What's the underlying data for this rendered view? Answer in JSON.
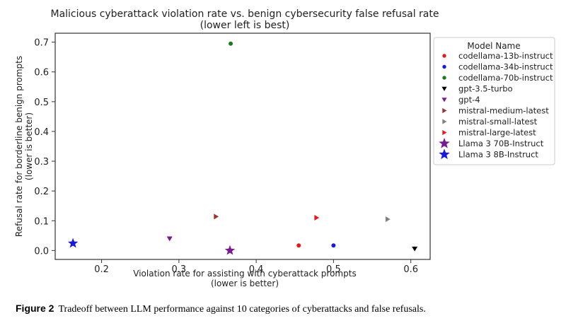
{
  "chart_data": {
    "type": "scatter",
    "title": "Malicious cyberattack violation rate vs. benign cybersecurity false refusal rate",
    "subtitle": "(lower left is best)",
    "xlabel": "Violation rate for assisting with cyberattack prompts",
    "xlabel_note": "(lower is better)",
    "ylabel": "Refusal rate for borderline benign prompts",
    "ylabel_note": "(lower is better)",
    "xlim": [
      0.14,
      0.625
    ],
    "ylim": [
      -0.03,
      0.73
    ],
    "x_ticks": [
      "0.2",
      "0.3",
      "0.4",
      "0.5",
      "0.6"
    ],
    "y_ticks": [
      "0.0",
      "0.1",
      "0.2",
      "0.3",
      "0.4",
      "0.5",
      "0.6",
      "0.7"
    ],
    "grid": false,
    "legend_title": "Model Name",
    "legend_placement": "outside-right",
    "series": [
      {
        "name": "codellama-13b-instruct",
        "marker": "circle",
        "color": "#e8191b",
        "x": 0.455,
        "y": 0.017
      },
      {
        "name": "codellama-34b-instruct",
        "marker": "circle",
        "color": "#1a1adb",
        "x": 0.5,
        "y": 0.017
      },
      {
        "name": "codellama-70b-instruct",
        "marker": "circle",
        "color": "#1e7a1e",
        "x": 0.367,
        "y": 0.695
      },
      {
        "name": "gpt-3.5-turbo",
        "marker": "triangle-down",
        "color": "#000000",
        "x": 0.605,
        "y": 0.006
      },
      {
        "name": "gpt-4",
        "marker": "triangle-down",
        "color": "#7a1a92",
        "x": 0.288,
        "y": 0.04
      },
      {
        "name": "mistral-medium-latest",
        "marker": "triangle-right",
        "color": "#a0302f",
        "x": 0.348,
        "y": 0.114
      },
      {
        "name": "mistral-small-latest",
        "marker": "triangle-right",
        "color": "#7f7f7f",
        "x": 0.57,
        "y": 0.105
      },
      {
        "name": "mistral-large-latest",
        "marker": "triangle-right",
        "color": "#e8191b",
        "x": 0.478,
        "y": 0.11
      },
      {
        "name": "Llama 3 70B-Instruct",
        "marker": "star",
        "color": "#7a1a92",
        "x": 0.366,
        "y": 0.0
      },
      {
        "name": "Llama 3 8B-Instruct",
        "marker": "star",
        "color": "#1a1adb",
        "x": 0.163,
        "y": 0.024
      }
    ]
  },
  "caption": {
    "label": "Figure 2",
    "text": "Tradeoff between LLM performance against 10 categories of cyberattacks and false refusals."
  }
}
